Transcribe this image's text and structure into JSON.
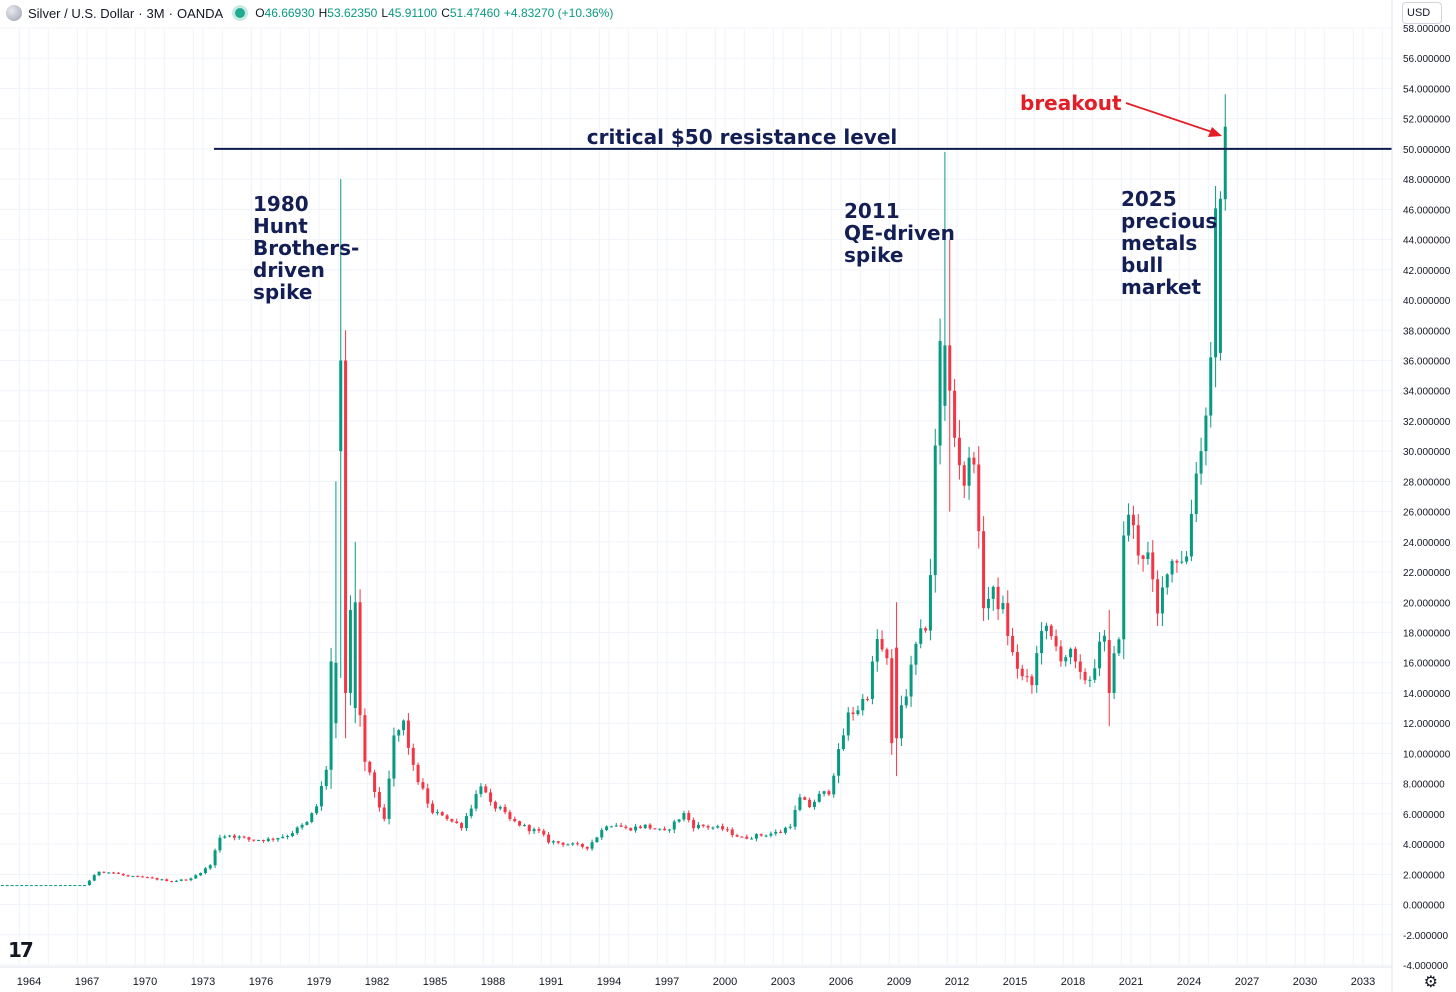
{
  "header": {
    "symbol": "Silver / U.S. Dollar",
    "interval": "3M",
    "source": "OANDA",
    "open_label": "O",
    "open": "46.66930",
    "high_label": "H",
    "high": "53.62350",
    "low_label": "L",
    "low": "45.91100",
    "close_label": "C",
    "close": "51.47460",
    "change": "+4.83270 (+10.36%)",
    "currency": "USD"
  },
  "logo": "17",
  "colors": {
    "up": "#089981",
    "down": "#f23645",
    "resistance": "#0d1b4c",
    "annotation": "#131e55",
    "breakout": "#e41e26"
  },
  "chart_data": {
    "type": "candlestick",
    "title": "",
    "xlabel": "",
    "ylabel": "",
    "ylim": [
      -4,
      58
    ],
    "xlim": [
      1962.5,
      2034.5
    ],
    "grid": true,
    "y_ticks": [
      "-4.000000",
      "-2.000000",
      "0.000000",
      "2.000000",
      "4.000000",
      "6.000000",
      "8.000000",
      "10.000000",
      "12.000000",
      "14.000000",
      "16.000000",
      "18.000000",
      "20.000000",
      "22.000000",
      "24.000000",
      "26.000000",
      "28.000000",
      "30.000000",
      "32.000000",
      "34.000000",
      "36.000000",
      "38.000000",
      "40.000000",
      "42.000000",
      "44.000000",
      "46.000000",
      "48.000000",
      "50.000000",
      "52.000000",
      "54.000000",
      "56.000000",
      "58.000000"
    ],
    "x_ticks": [
      "1964",
      "1967",
      "1970",
      "1973",
      "1976",
      "1979",
      "1982",
      "1985",
      "1988",
      "1991",
      "1994",
      "1997",
      "2000",
      "2003",
      "2006",
      "2009",
      "2012",
      "2015",
      "2018",
      "2021",
      "2024",
      "2027",
      "2030",
      "2033"
    ],
    "resistance": {
      "value": 50,
      "label": "critical $50 resistance level"
    },
    "annotations": [
      {
        "text": [
          "1980",
          "Hunt",
          "Brothers-",
          "driven",
          "spike"
        ],
        "x": 1980.0
      },
      {
        "text": [
          "2011",
          "QE-driven",
          "spike"
        ],
        "x": 2011.0
      },
      {
        "text": [
          "2025",
          "precious",
          "metals",
          "bull",
          "market"
        ],
        "x": 2025.0
      },
      {
        "text": [
          "breakout"
        ],
        "x": 2025.75
      }
    ],
    "anchors": [
      [
        1962.5,
        1.29
      ],
      [
        1967.0,
        1.29
      ],
      [
        1967.75,
        2.2
      ],
      [
        1968.5,
        2.1
      ],
      [
        1969.25,
        1.85
      ],
      [
        1970.0,
        1.8
      ],
      [
        1971.5,
        1.55
      ],
      [
        1972.5,
        1.7
      ],
      [
        1973.5,
        2.6
      ],
      [
        1974.0,
        4.5
      ],
      [
        1974.5,
        4.6
      ],
      [
        1975.5,
        4.3
      ],
      [
        1976.5,
        4.3
      ],
      [
        1977.5,
        4.6
      ],
      [
        1978.5,
        5.4
      ],
      [
        1979.0,
        6.5
      ],
      [
        1979.5,
        9.0
      ],
      [
        1979.75,
        16.0
      ],
      [
        1980.0,
        36.0
      ],
      [
        1980.25,
        14.0
      ],
      [
        1980.5,
        13.0
      ],
      [
        1980.75,
        19.0
      ],
      [
        1981.0,
        15.0
      ],
      [
        1981.5,
        9.5
      ],
      [
        1982.0,
        7.5
      ],
      [
        1982.5,
        5.5
      ],
      [
        1983.0,
        11.0
      ],
      [
        1983.5,
        12.0
      ],
      [
        1984.0,
        9.0
      ],
      [
        1984.5,
        7.5
      ],
      [
        1985.0,
        6.0
      ],
      [
        1985.5,
        6.0
      ],
      [
        1986.0,
        5.5
      ],
      [
        1986.5,
        5.2
      ],
      [
        1987.0,
        6.5
      ],
      [
        1987.5,
        8.0
      ],
      [
        1988.0,
        6.6
      ],
      [
        1988.5,
        6.3
      ],
      [
        1989.0,
        5.6
      ],
      [
        1990.0,
        5.0
      ],
      [
        1990.5,
        4.8
      ],
      [
        1991.0,
        4.2
      ],
      [
        1991.5,
        4.1
      ],
      [
        1992.0,
        4.0
      ],
      [
        1992.5,
        3.9
      ],
      [
        1993.0,
        3.8
      ],
      [
        1993.5,
        4.5
      ],
      [
        1994.0,
        5.3
      ],
      [
        1994.5,
        5.3
      ],
      [
        1995.0,
        5.0
      ],
      [
        1996.0,
        5.2
      ],
      [
        1996.5,
        5.0
      ],
      [
        1997.0,
        4.8
      ],
      [
        1998.0,
        6.0
      ],
      [
        1998.5,
        5.2
      ],
      [
        1999.0,
        5.2
      ],
      [
        2000.0,
        5.0
      ],
      [
        2001.0,
        4.4
      ],
      [
        2002.0,
        4.6
      ],
      [
        2003.0,
        4.8
      ],
      [
        2003.5,
        5.3
      ],
      [
        2004.0,
        7.0
      ],
      [
        2004.5,
        6.5
      ],
      [
        2005.0,
        7.2
      ],
      [
        2005.5,
        7.5
      ],
      [
        2006.0,
        10.0
      ],
      [
        2006.5,
        12.5
      ],
      [
        2007.0,
        13.0
      ],
      [
        2007.5,
        14.0
      ],
      [
        2008.0,
        17.5
      ],
      [
        2008.5,
        16.0
      ],
      [
        2008.75,
        10.5
      ],
      [
        2009.0,
        12.5
      ],
      [
        2009.5,
        14.0
      ],
      [
        2010.0,
        17.0
      ],
      [
        2010.5,
        18.5
      ],
      [
        2010.75,
        22.0
      ],
      [
        2011.0,
        30.0
      ],
      [
        2011.25,
        37.0
      ],
      [
        2011.5,
        35.0
      ],
      [
        2011.75,
        30.0
      ],
      [
        2012.0,
        31.0
      ],
      [
        2012.5,
        28.0
      ],
      [
        2013.0,
        30.0
      ],
      [
        2013.25,
        24.0
      ],
      [
        2013.5,
        20.0
      ],
      [
        2014.0,
        20.5
      ],
      [
        2014.5,
        19.5
      ],
      [
        2015.0,
        16.5
      ],
      [
        2015.5,
        15.0
      ],
      [
        2016.0,
        14.5
      ],
      [
        2016.5,
        18.5
      ],
      [
        2017.0,
        17.5
      ],
      [
        2017.5,
        16.5
      ],
      [
        2018.0,
        16.5
      ],
      [
        2018.5,
        15.0
      ],
      [
        2019.0,
        15.0
      ],
      [
        2019.5,
        17.0
      ],
      [
        2019.75,
        17.5
      ],
      [
        2020.0,
        14.5
      ],
      [
        2020.5,
        18.0
      ],
      [
        2020.75,
        24.0
      ],
      [
        2021.0,
        26.0
      ],
      [
        2021.5,
        23.5
      ],
      [
        2022.0,
        23.0
      ],
      [
        2022.5,
        19.0
      ],
      [
        2023.0,
        22.5
      ],
      [
        2023.5,
        23.0
      ],
      [
        2024.0,
        23.0
      ],
      [
        2024.5,
        29.0
      ],
      [
        2024.75,
        30.0
      ],
      [
        2025.0,
        33.0
      ],
      [
        2025.25,
        36.0
      ],
      [
        2025.5,
        46.7
      ],
      [
        2025.75,
        51.47
      ]
    ]
  }
}
